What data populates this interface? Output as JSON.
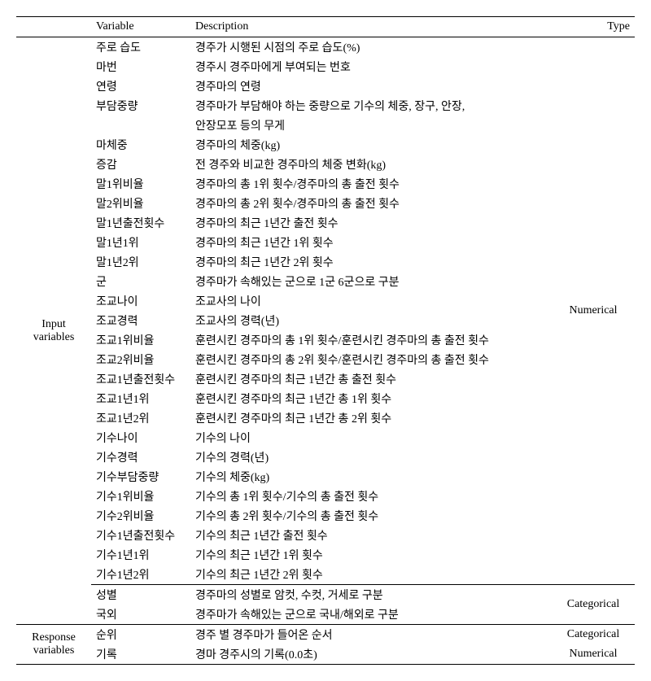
{
  "header": {
    "blank": "",
    "variable": "Variable",
    "description": "Description",
    "type": "Type"
  },
  "groups": {
    "input": "Input\nvariables",
    "response": "Response\nvariables"
  },
  "types": {
    "numerical": "Numerical",
    "categorical": "Categorical"
  },
  "rows": [
    {
      "var": "주로 습도",
      "desc": "경주가 시행된 시점의 주로 습도(%)"
    },
    {
      "var": "마번",
      "desc": "경주시 경주마에게 부여되는 번호"
    },
    {
      "var": "연령",
      "desc": "경주마의 연령"
    },
    {
      "var": "부담중량",
      "desc": "경주마가 부담해야 하는 중량으로 기수의 체중, 장구, 안장,"
    },
    {
      "var": "",
      "desc": "안장모포 등의 무게"
    },
    {
      "var": "마체중",
      "desc": "경주마의 체중(kg)"
    },
    {
      "var": "증감",
      "desc": "전 경주와 비교한 경주마의 체중 변화(kg)"
    },
    {
      "var": "말1위비율",
      "desc": "경주마의 총 1위 횟수/경주마의 총 출전 횟수"
    },
    {
      "var": "말2위비율",
      "desc": "경주마의 총 2위 횟수/경주마의 총 출전 횟수"
    },
    {
      "var": "말1년출전횟수",
      "desc": "경주마의 최근 1년간 출전 횟수"
    },
    {
      "var": "말1년1위",
      "desc": "경주마의 최근 1년간 1위 횟수"
    },
    {
      "var": "말1년2위",
      "desc": "경주마의 최근 1년간 2위 횟수"
    },
    {
      "var": "군",
      "desc": "경주마가 속해있는 군으로 1군 6군으로 구분"
    },
    {
      "var": "조교나이",
      "desc": "조교사의 나이"
    },
    {
      "var": "조교경력",
      "desc": "조교사의 경력(년)"
    },
    {
      "var": "조교1위비율",
      "desc": "훈련시킨 경주마의 총 1위 횟수/훈련시킨 경주마의 총 출전 횟수"
    },
    {
      "var": "조교2위비율",
      "desc": "훈련시킨 경주마의 총 2위 횟수/훈련시킨 경주마의 총 출전 횟수"
    },
    {
      "var": "조교1년출전횟수",
      "desc": "훈련시킨 경주마의 최근 1년간 총 출전 횟수"
    },
    {
      "var": "조교1년1위",
      "desc": "훈련시킨 경주마의 최근 1년간 총 1위 횟수"
    },
    {
      "var": "조교1년2위",
      "desc": "훈련시킨 경주마의 최근 1년간 총 2위 횟수"
    },
    {
      "var": "기수나이",
      "desc": "기수의 나이"
    },
    {
      "var": "기수경력",
      "desc": "기수의 경력(년)"
    },
    {
      "var": "기수부담중량",
      "desc": "기수의 체중(kg)"
    },
    {
      "var": "기수1위비율",
      "desc": "기수의 총 1위 횟수/기수의 총 출전 횟수"
    },
    {
      "var": "기수2위비율",
      "desc": "기수의 총 2위 횟수/기수의 총 출전 횟수"
    },
    {
      "var": "기수1년출전횟수",
      "desc": "기수의 최근 1년간 출전 횟수"
    },
    {
      "var": "기수1년1위",
      "desc": "기수의 최근 1년간 1위 횟수"
    },
    {
      "var": "기수1년2위",
      "desc": "기수의 최근 1년간 2위 횟수"
    }
  ],
  "catRows": [
    {
      "var": "성별",
      "desc": "경주마의 성별로 암컷, 수컷, 거세로 구분"
    },
    {
      "var": "국외",
      "desc": "경주마가 속해있는 군으로 국내/해외로 구분"
    }
  ],
  "respRows": [
    {
      "var": "순위",
      "desc": "경주 별 경주마가 들어온 순서",
      "type": "Categorical"
    },
    {
      "var": "기록",
      "desc": "경마 경주시의 기록(0.0초)",
      "type": "Numerical"
    }
  ]
}
